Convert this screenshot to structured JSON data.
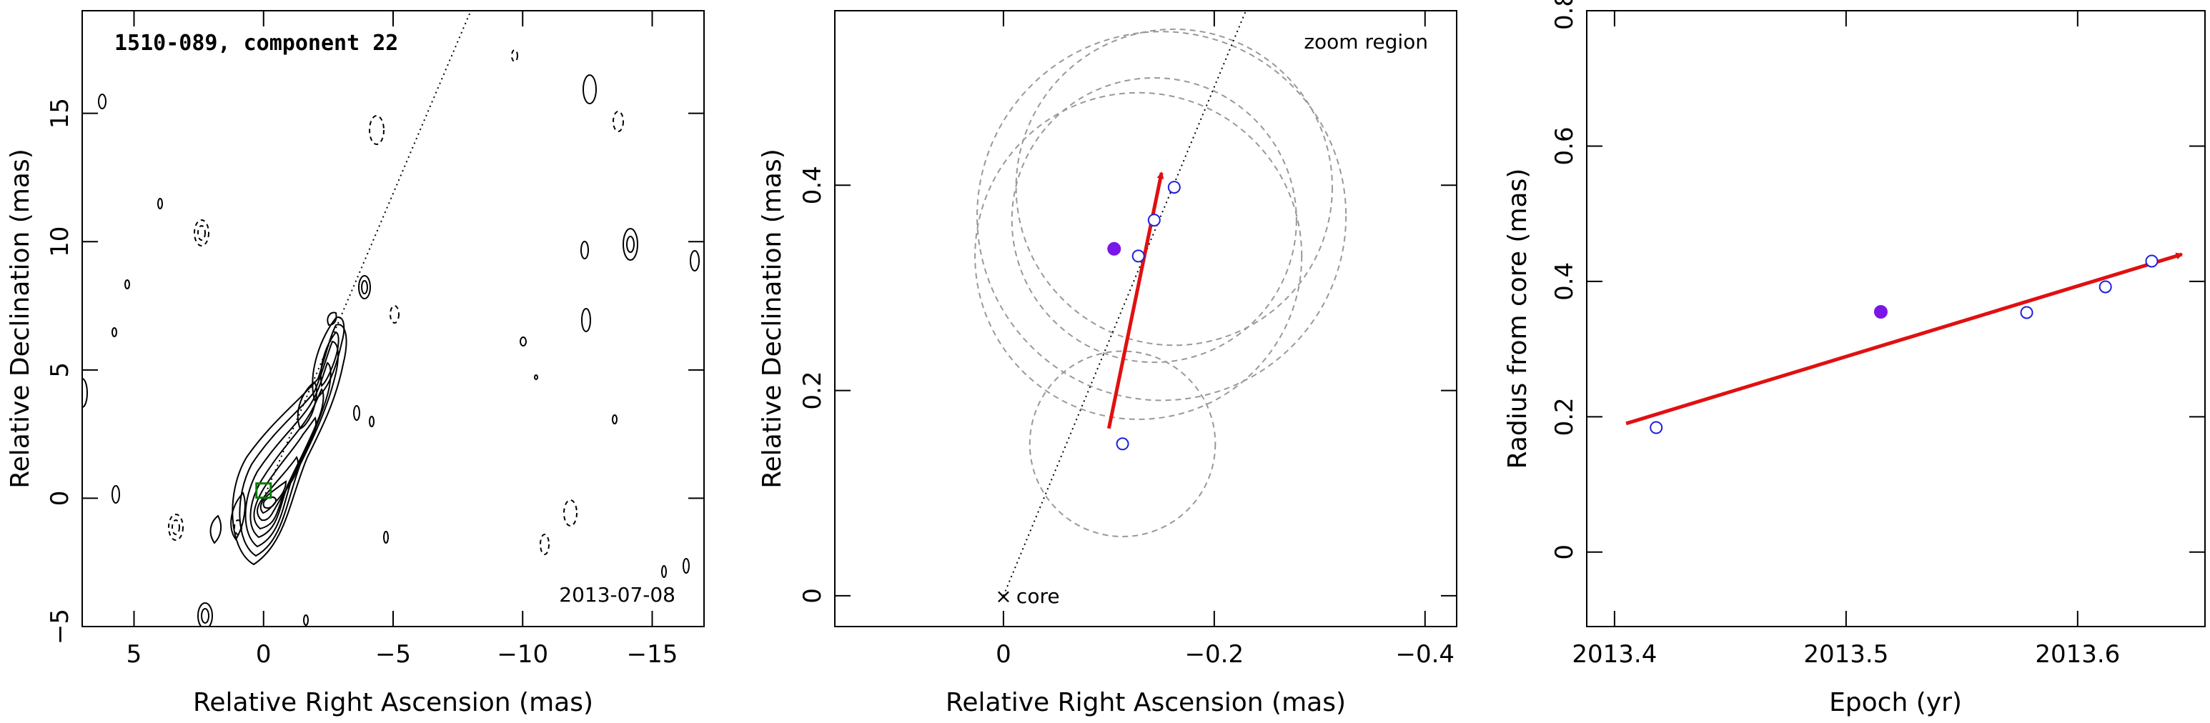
{
  "colors": {
    "axis": "#000000",
    "contour": "#000000",
    "circle": "#999999",
    "open_point": "#1f1fdc",
    "filled_point": "#7b16e8",
    "vector": "#e01010",
    "core_marker": "#0a7a0a"
  },
  "chart_data": [
    {
      "type": "contour",
      "title": "1510-089, component 22",
      "date": "2013-07-08",
      "xlabel": "Relative Right Ascension (mas)",
      "ylabel": "Relative Declination (mas)",
      "xlim": [
        7,
        -17
      ],
      "ylim": [
        -5,
        19
      ],
      "xticks": [
        5,
        0,
        -5,
        -10,
        -15
      ],
      "yticks": [
        -5,
        0,
        5,
        10,
        15
      ],
      "xtick_labels": [
        "5",
        "0",
        "−5",
        "−10",
        "−15"
      ],
      "ytick_labels": [
        "−5",
        "0",
        "5",
        "10",
        "15"
      ],
      "direction_line": {
        "x": [
          0,
          -8
        ],
        "y": [
          0,
          19
        ]
      },
      "core_marker": {
        "x": 0,
        "y": 0.3
      }
    },
    {
      "type": "scatter",
      "annotation": "zoom region",
      "core_label": "core",
      "xlabel": "Relative Right Ascension (mas)",
      "ylabel": "Relative Declination (mas)",
      "xlim": [
        0.16,
        -0.43
      ],
      "ylim": [
        -0.03,
        0.57
      ],
      "xticks": [
        0,
        -0.2,
        -0.4
      ],
      "yticks": [
        0,
        0.2,
        0.4
      ],
      "xtick_labels": [
        "0",
        "−0.2",
        "−0.4"
      ],
      "ytick_labels": [
        "0",
        "0.2",
        "0.4"
      ],
      "direction_line": {
        "x": [
          0,
          -0.23
        ],
        "y": [
          0,
          0.57
        ]
      },
      "core": {
        "x": 0,
        "y": 0
      },
      "open_points": [
        {
          "x": -0.113,
          "y": 0.148
        },
        {
          "x": -0.128,
          "y": 0.331
        },
        {
          "x": -0.143,
          "y": 0.366
        },
        {
          "x": -0.162,
          "y": 0.398
        }
      ],
      "filled_points": [
        {
          "x": -0.105,
          "y": 0.338
        }
      ],
      "circles": [
        {
          "x": -0.113,
          "y": 0.148,
          "r": 0.088
        },
        {
          "x": -0.128,
          "y": 0.331,
          "r": 0.155
        },
        {
          "x": -0.143,
          "y": 0.366,
          "r": 0.135
        },
        {
          "x": -0.162,
          "y": 0.398,
          "r": 0.15
        },
        {
          "x": -0.15,
          "y": 0.37,
          "r": 0.175
        }
      ],
      "vector": {
        "x0": -0.1,
        "y0": 0.163,
        "x1": -0.15,
        "y1": 0.412
      }
    },
    {
      "type": "scatter",
      "xlabel": "Epoch (yr)",
      "ylabel": "Radius from core (mas)",
      "xlim": [
        2013.388,
        2013.655
      ],
      "ylim": [
        -0.11,
        0.8
      ],
      "xticks": [
        2013.4,
        2013.5,
        2013.6
      ],
      "yticks": [
        0,
        0.2,
        0.4,
        0.6,
        0.8
      ],
      "xtick_labels": [
        "2013.4",
        "2013.5",
        "2013.6"
      ],
      "ytick_labels": [
        "0",
        "0.2",
        "0.4",
        "0.6",
        "0.8"
      ],
      "open_points": [
        {
          "x": 2013.418,
          "y": 0.184
        },
        {
          "x": 2013.578,
          "y": 0.354
        },
        {
          "x": 2013.612,
          "y": 0.392
        },
        {
          "x": 2013.632,
          "y": 0.43
        }
      ],
      "filled_points": [
        {
          "x": 2013.515,
          "y": 0.355
        }
      ],
      "fit_line": {
        "x0": 2013.405,
        "y0": 0.19,
        "x1": 2013.645,
        "y1": 0.44
      }
    }
  ]
}
